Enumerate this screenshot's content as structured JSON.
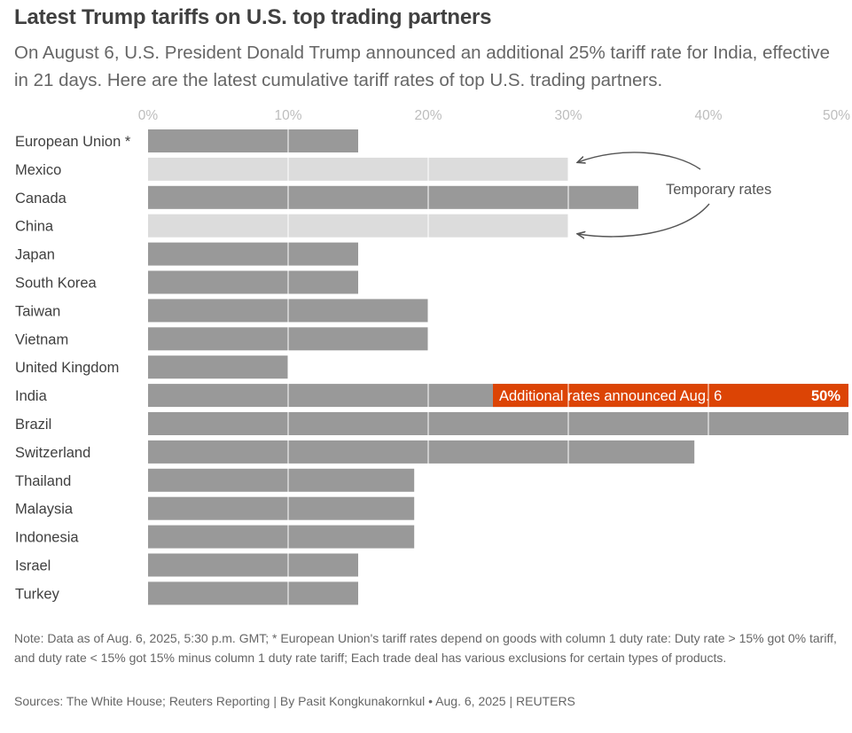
{
  "title": "Latest Trump tariffs on U.S. top trading partners",
  "subtitle": "On August 6, U.S. President Donald Trump announced an additional 25% tariff rate for India, effective in 21 days. Here are the latest cumulative tariff rates of top U.S. trading partners.",
  "note": "Note: Data as of Aug. 6, 2025, 5:30 p.m. GMT; * European Union's tariff rates depend on goods with column 1 duty rate: Duty rate > 15% got 0% tariff, and duty rate < 15% got 15% minus column 1 duty rate tariff; Each trade deal has various exclusions for certain types of products.",
  "source": "Sources: The White House; Reuters Reporting | By Pasit Kongkunakornkul • Aug. 6, 2025 | REUTERS",
  "colors": {
    "standard": "#999999",
    "temporary": "#dcdcdc",
    "additional": "#dc4405",
    "grid": "#ffffff",
    "axis_text": "#bdbdbd",
    "label_text": "#404040"
  },
  "chart_data": {
    "type": "bar",
    "orientation": "horizontal",
    "xlim": [
      0,
      50
    ],
    "x_ticks": [
      "0%",
      "10%",
      "20%",
      "30%",
      "40%",
      "50%"
    ],
    "grid": true,
    "categories": [
      "European Union *",
      "Mexico",
      "Canada",
      "China",
      "Japan",
      "South Korea",
      "Taiwan",
      "Vietnam",
      "United Kingdom",
      "India",
      "Brazil",
      "Switzerland",
      "Thailand",
      "Malaysia",
      "Indonesia",
      "Israel",
      "Turkey"
    ],
    "values": [
      15,
      30,
      35,
      30,
      15,
      15,
      20,
      20,
      10,
      50,
      50,
      39,
      19,
      19,
      19,
      15,
      15
    ],
    "temporary": [
      false,
      true,
      false,
      true,
      false,
      false,
      false,
      false,
      false,
      false,
      false,
      false,
      false,
      false,
      false,
      false,
      false
    ],
    "additional": [
      {
        "category": "India",
        "from": 25,
        "to": 50,
        "label": "Additional rates announced Aug. 6",
        "value_label": "50%"
      }
    ],
    "annotations": [
      {
        "text": "Temporary rates",
        "targets": [
          "Mexico",
          "China"
        ]
      }
    ]
  }
}
